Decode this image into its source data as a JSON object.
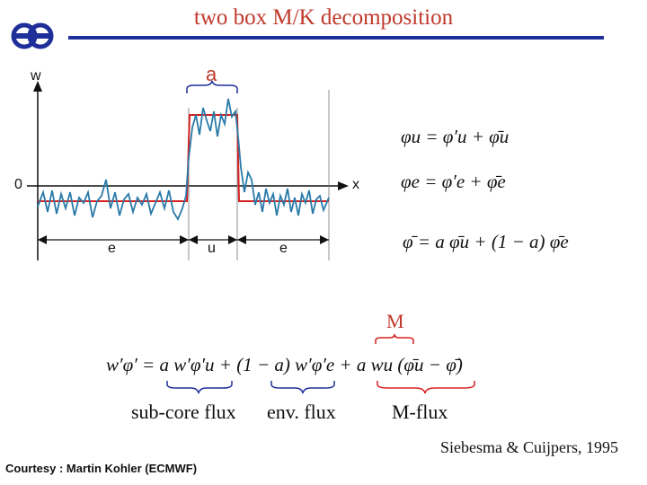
{
  "slide": {
    "title": "two box M/K decomposition",
    "colors": {
      "title": "#c0392b",
      "rule": "#1f2f99",
      "signal": "#2a7aa8",
      "box": "#d62020",
      "logo": "#1f2f99"
    }
  },
  "logo": {
    "icon": "ecmwf-logo-icon"
  },
  "plot": {
    "y_axis_label": "w",
    "x_axis_label": "x",
    "zero_label": "0",
    "bracket_label": "a",
    "segments": [
      "e",
      "u",
      "e"
    ]
  },
  "equations": {
    "phi_u": "φu = φ′u + φ̄u",
    "phi_e": "φe = φ′e + φ̄e",
    "phi_mean": "φ̄ = a φ̄u + (1 − a) φ̄e",
    "flux_marker": "M",
    "flux": "w′φ′ = a w′φ′u + (1 − a) w′φ′e + a wu (φ̄u − φ̄)"
  },
  "captions": {
    "sub_core": "sub-core flux",
    "env": "env. flux",
    "m_flux": "M-flux"
  },
  "reference": "Siebesma & Cuijpers, 1995",
  "credit": "Courtesy : Martin Kohler (ECMWF)"
}
